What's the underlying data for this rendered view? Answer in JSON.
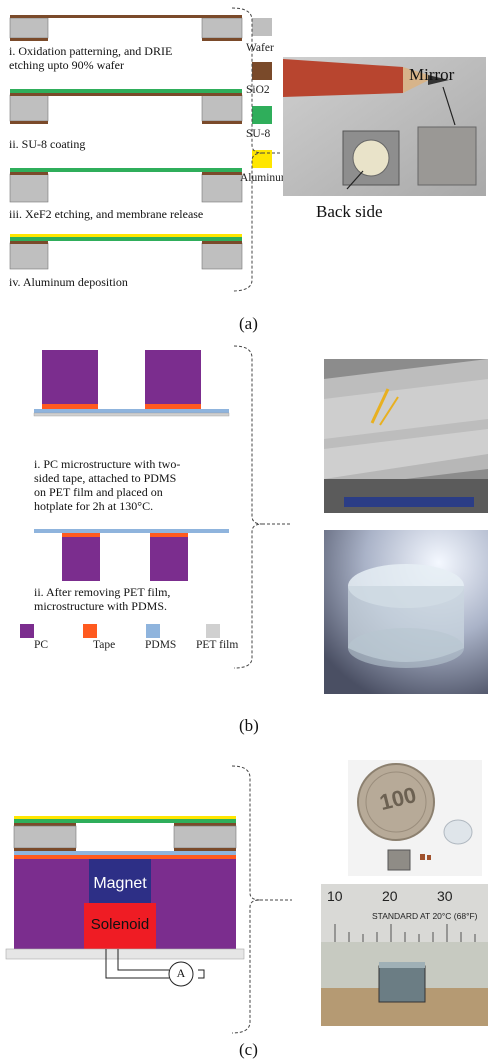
{
  "panel_a": {
    "label": "(a)",
    "steps": [
      "i. Oxidation patterning, and DRIE",
      "etching upto 90% wafer",
      "ii. SU-8 coating",
      "iii. XeF2 etching, and membrane release",
      "iv. Aluminum deposition"
    ],
    "legend": [
      {
        "name": "Wafer",
        "color": "#bfbfbf"
      },
      {
        "name": "SiO2",
        "color": "#7a4a2a"
      },
      {
        "name": "SU-8",
        "color": "#2fae5b"
      },
      {
        "name": "Aluminum",
        "color": "#ffe600"
      }
    ],
    "photo_labels": {
      "mirror": "Mirror",
      "back_side": "Back side"
    }
  },
  "panel_b": {
    "label": "(b)",
    "steps": [
      "i. PC microstructure with two-",
      "sided tape, attached to PDMS",
      "on PET film and placed on",
      "hotplate for 2h at 130°C.",
      "ii. After removing PET film,",
      "microstructure with PDMS."
    ],
    "legend": [
      {
        "name": "PC",
        "color": "#7b2d8e"
      },
      {
        "name": "Tape",
        "color": "#ff5a1f"
      },
      {
        "name": "PDMS",
        "color": "#8fb4dd"
      },
      {
        "name": "PET film",
        "color": "#d0d0d0"
      }
    ]
  },
  "panel_c": {
    "label": "(c)",
    "magnet_label": "Magnet",
    "solenoid_label": "Solenoid",
    "ammeter_label": "A",
    "ruler": {
      "numbers": [
        "10",
        "20",
        "30"
      ],
      "text": "STANDARD  AT 20°C (68°F)"
    },
    "coin_text": "100"
  }
}
